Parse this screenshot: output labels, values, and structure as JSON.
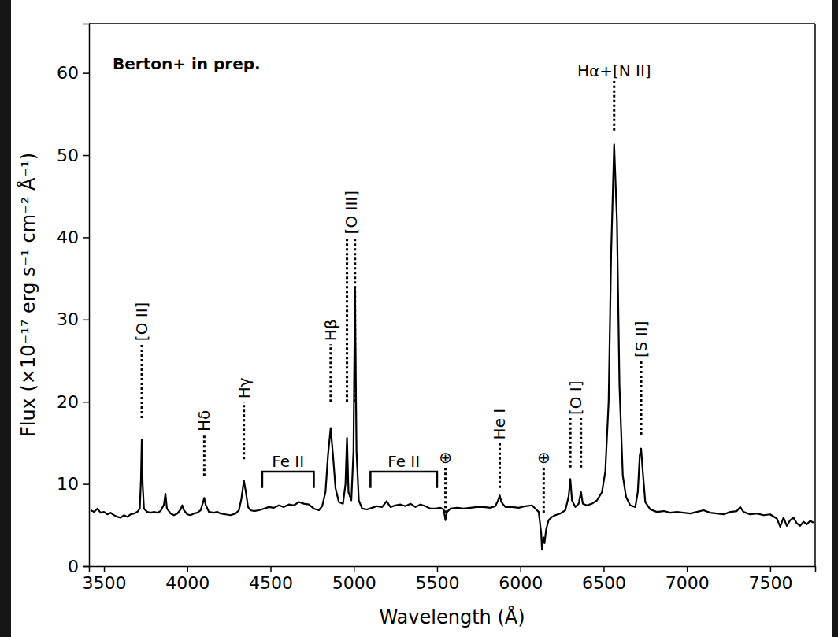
{
  "chart_data": {
    "type": "line",
    "x_label": "Wavelength (Å)",
    "y_label": "Flux (×10⁻¹⁷ erg s⁻¹ cm⁻² Å⁻¹)",
    "color": "#000000",
    "grid": false,
    "xlim": [
      3410,
      7770
    ],
    "ylim": [
      0,
      66
    ],
    "xticks": [
      3500,
      4000,
      4500,
      5000,
      5500,
      6000,
      6500,
      7000,
      7500
    ],
    "yticks": [
      0,
      10,
      20,
      30,
      40,
      50,
      60
    ],
    "x": [
      3420,
      3440,
      3460,
      3480,
      3500,
      3520,
      3540,
      3560,
      3580,
      3600,
      3620,
      3640,
      3660,
      3680,
      3700,
      3715,
      3722,
      3727,
      3732,
      3740,
      3760,
      3780,
      3800,
      3820,
      3840,
      3860,
      3869,
      3878,
      3900,
      3920,
      3940,
      3960,
      3970,
      3980,
      4000,
      4020,
      4040,
      4060,
      4080,
      4095,
      4102,
      4110,
      4130,
      4160,
      4180,
      4200,
      4230,
      4260,
      4290,
      4310,
      4325,
      4340,
      4352,
      4365,
      4380,
      4400,
      4430,
      4460,
      4490,
      4520,
      4550,
      4580,
      4610,
      4640,
      4670,
      4700,
      4730,
      4760,
      4790,
      4810,
      4830,
      4845,
      4861,
      4875,
      4890,
      4910,
      4935,
      4950,
      4959,
      4968,
      4985,
      4998,
      5007,
      5016,
      5030,
      5050,
      5080,
      5110,
      5140,
      5170,
      5197,
      5220,
      5250,
      5280,
      5310,
      5340,
      5370,
      5400,
      5430,
      5460,
      5490,
      5520,
      5540,
      5550,
      5560,
      5580,
      5620,
      5660,
      5700,
      5740,
      5780,
      5820,
      5850,
      5866,
      5876,
      5886,
      5910,
      5950,
      5990,
      6030,
      6070,
      6090,
      6110,
      6125,
      6130,
      6138,
      6145,
      6155,
      6170,
      6190,
      6210,
      6240,
      6270,
      6290,
      6300,
      6310,
      6330,
      6350,
      6364,
      6375,
      6400,
      6430,
      6460,
      6490,
      6510,
      6530,
      6545,
      6563,
      6580,
      6595,
      6615,
      6635,
      6660,
      6690,
      6705,
      6717,
      6725,
      6735,
      6750,
      6780,
      6820,
      6860,
      6900,
      6940,
      6980,
      7020,
      7060,
      7100,
      7140,
      7180,
      7220,
      7260,
      7300,
      7320,
      7340,
      7380,
      7420,
      7460,
      7500,
      7540,
      7560,
      7580,
      7600,
      7620,
      7640,
      7660,
      7680,
      7700,
      7720,
      7740,
      7760
    ],
    "values": [
      6.8,
      6.6,
      7.0,
      6.5,
      6.6,
      6.3,
      6.5,
      6.2,
      6.0,
      5.9,
      6.2,
      6.0,
      6.3,
      6.4,
      6.6,
      7.0,
      10.5,
      15.4,
      10.0,
      7.0,
      6.6,
      6.5,
      6.6,
      6.5,
      6.7,
      7.5,
      8.8,
      7.0,
      6.4,
      6.2,
      6.4,
      6.9,
      7.4,
      6.8,
      6.3,
      6.2,
      6.4,
      6.5,
      6.8,
      7.8,
      8.3,
      7.5,
      6.6,
      6.5,
      6.6,
      6.4,
      6.3,
      6.2,
      6.4,
      6.8,
      8.2,
      10.4,
      9.0,
      7.2,
      6.8,
      6.7,
      6.8,
      7.0,
      7.2,
      7.1,
      7.4,
      7.2,
      7.5,
      7.4,
      7.8,
      7.6,
      7.5,
      7.0,
      6.8,
      7.3,
      9.0,
      13.5,
      16.8,
      13.5,
      9.5,
      7.8,
      7.6,
      10.0,
      15.6,
      9.0,
      8.0,
      14.0,
      33.8,
      14.0,
      8.0,
      7.0,
      6.9,
      7.1,
      7.3,
      7.2,
      7.9,
      7.2,
      7.4,
      7.5,
      7.3,
      7.6,
      7.2,
      7.5,
      7.3,
      7.0,
      7.0,
      7.1,
      6.9,
      5.6,
      6.6,
      7.0,
      7.1,
      7.0,
      7.1,
      7.2,
      7.2,
      7.1,
      7.3,
      8.0,
      8.6,
      7.8,
      7.2,
      7.2,
      7.1,
      7.3,
      7.4,
      7.0,
      6.6,
      4.0,
      2.0,
      3.5,
      2.8,
      4.5,
      5.6,
      6.0,
      6.2,
      6.4,
      6.8,
      8.5,
      10.6,
      8.0,
      7.2,
      7.6,
      9.0,
      7.6,
      7.4,
      7.6,
      8.0,
      9.0,
      11.5,
      20,
      38,
      51.3,
      42,
      22,
      11,
      8.4,
      7.4,
      7.2,
      9.0,
      13.5,
      14.3,
      11.5,
      7.8,
      6.9,
      6.6,
      6.7,
      6.5,
      6.6,
      6.5,
      6.4,
      6.6,
      6.8,
      6.5,
      6.4,
      6.3,
      6.6,
      6.7,
      7.2,
      6.6,
      6.3,
      6.4,
      6.2,
      6.3,
      5.8,
      4.8,
      5.9,
      4.9,
      5.6,
      5.9,
      5.2,
      4.9,
      5.4,
      5.1,
      5.5,
      5.3
    ],
    "annotations": [
      {
        "text": "Berton+ in prep."
      },
      {
        "text": "[O II]",
        "x": [
          3727
        ],
        "y": [
          18,
          27
        ],
        "line_style": "dotted"
      },
      {
        "text": "Hδ",
        "x": [
          4102
        ],
        "y": [
          11,
          16
        ],
        "line_style": "dotted"
      },
      {
        "text": "Hγ",
        "x": [
          4340
        ],
        "y": [
          13,
          20
        ],
        "line_style": "dotted"
      },
      {
        "text": "Fe II",
        "x": [
          4450,
          4760
        ],
        "y": [
          9.5,
          11.5
        ],
        "line_style": "bracket",
        "orientation": "horizontal"
      },
      {
        "text": "Hβ",
        "x": [
          4861
        ],
        "y": [
          20,
          27
        ],
        "line_style": "dotted"
      },
      {
        "text": "[O III]",
        "x": [
          4959,
          5007
        ],
        "y": [
          20,
          40
        ],
        "line_style": "dotted"
      },
      {
        "text": "Fe II",
        "x": [
          5100,
          5500
        ],
        "y": [
          9.5,
          11.5
        ],
        "line_style": "bracket",
        "orientation": "horizontal"
      },
      {
        "text": "⊕",
        "x": [
          5550
        ],
        "y": [
          6.5,
          12
        ],
        "line_style": "dotted",
        "orientation": "horizontal"
      },
      {
        "text": "He I",
        "x": [
          5876
        ],
        "y": [
          9.5,
          15
        ],
        "line_style": "dotted"
      },
      {
        "text": "⊕",
        "x": [
          6140
        ],
        "y": [
          6.5,
          12
        ],
        "line_style": "dotted",
        "orientation": "horizontal"
      },
      {
        "text": "[O I]",
        "x": [
          6300,
          6364
        ],
        "y": [
          12,
          18
        ],
        "line_style": "dotted"
      },
      {
        "text": "Hα+[N II]",
        "x": [
          6563
        ],
        "y": [
          53,
          59
        ],
        "line_style": "dotted",
        "orientation": "horizontal"
      },
      {
        "text": "[S II]",
        "x": [
          6725
        ],
        "y": [
          16,
          25
        ],
        "line_style": "dotted"
      }
    ]
  }
}
